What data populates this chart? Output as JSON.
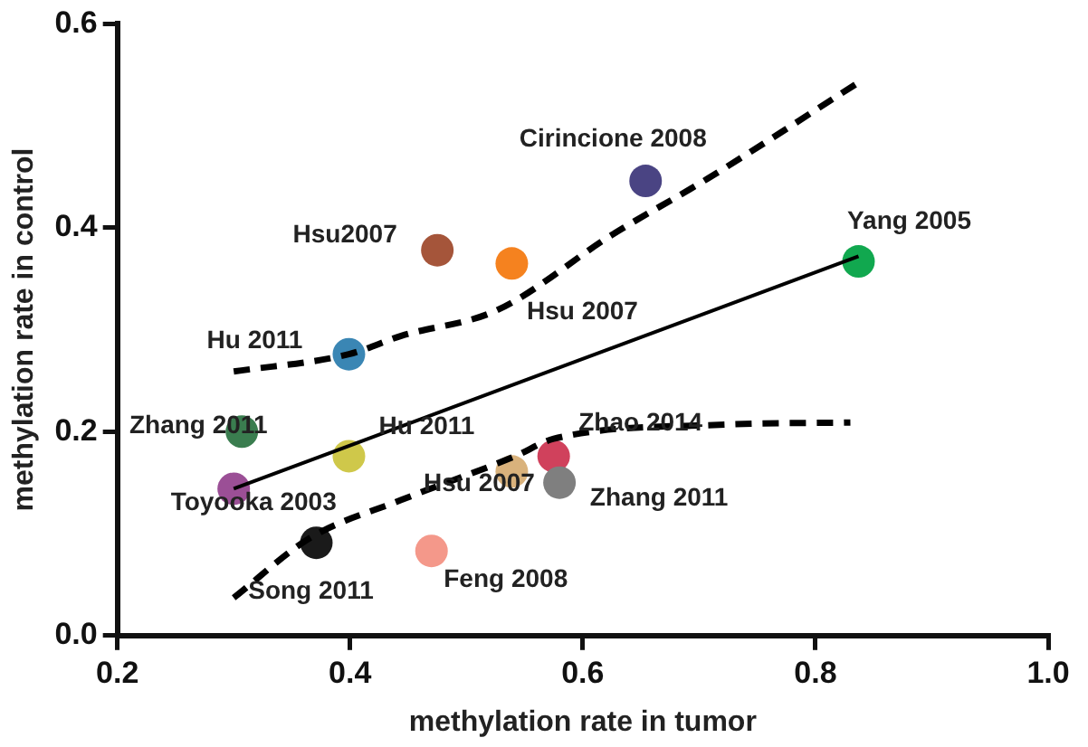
{
  "chart_data": {
    "type": "scatter",
    "xlabel": "methylation rate in tumor",
    "ylabel": "methylation rate in control",
    "xlim": [
      0.2,
      1.0
    ],
    "ylim": [
      0,
      0.6
    ],
    "xticks": [
      0.2,
      0.4,
      0.6,
      0.8,
      {
        "value": 1.0,
        "label": "1.0"
      }
    ],
    "yticks": [
      {
        "value": 0,
        "label": "0.0"
      },
      0.2,
      0.4,
      0.6
    ],
    "grid": false,
    "legend": false,
    "series": [
      {
        "marker": "circle",
        "x": [
          0.3,
          0.307,
          0.399,
          0.399,
          0.371,
          0.475,
          0.539,
          0.47,
          0.539,
          0.575,
          0.58,
          0.654,
          0.837
        ],
        "values": [
          0.144,
          0.2,
          0.276,
          0.176,
          0.091,
          0.378,
          0.365,
          0.083,
          0.161,
          0.176,
          0.15,
          0.446,
          0.367
        ],
        "colors": [
          "#9b4f96",
          "#3a7d4f",
          "#3a86b4",
          "#cfc84a",
          "#1a1a1a",
          "#a5553a",
          "#f5821f",
          "#f4988a",
          "#d9b27c",
          "#d0415c",
          "#7f7f7f",
          "#4a4483",
          "#11a84f"
        ]
      },
      {
        "type": "line",
        "color": "#000000",
        "line_style": "solid",
        "x": [
          0.3,
          0.837
        ],
        "values": [
          0.144,
          0.372
        ]
      },
      {
        "type": "line",
        "color": "#000000",
        "line_style": "dashed",
        "x": [
          0.3,
          0.399,
          0.444,
          0.526,
          0.625,
          0.707,
          0.839
        ],
        "values": [
          0.259,
          0.276,
          0.294,
          0.319,
          0.393,
          0.448,
          0.544
        ]
      },
      {
        "type": "line",
        "color": "#000000",
        "line_style": "dashed",
        "x": [
          0.3,
          0.366,
          0.444,
          0.542,
          0.575,
          0.723,
          0.83
        ],
        "values": [
          0.037,
          0.096,
          0.133,
          0.176,
          0.193,
          0.207,
          0.209
        ]
      }
    ],
    "annotations": [
      {
        "text": "Toyooka 2003",
        "x": 0.3,
        "y": 0.144
      },
      {
        "text": "Zhang 2011",
        "x": 0.307,
        "y": 0.2
      },
      {
        "text": "Hu 2011",
        "x": 0.399,
        "y": 0.276
      },
      {
        "text": "Hu 2011",
        "x": 0.399,
        "y": 0.176
      },
      {
        "text": "Song 2011",
        "x": 0.371,
        "y": 0.091
      },
      {
        "text": "Hsu2007",
        "x": 0.475,
        "y": 0.378
      },
      {
        "text": "Hsu 2007",
        "x": 0.539,
        "y": 0.365
      },
      {
        "text": "Feng 2008",
        "x": 0.47,
        "y": 0.083
      },
      {
        "text": "Hsu 2007",
        "x": 0.539,
        "y": 0.161
      },
      {
        "text": "Zhao 2014",
        "x": 0.575,
        "y": 0.176
      },
      {
        "text": "Zhang 2011",
        "x": 0.58,
        "y": 0.15
      },
      {
        "text": "Cirincione 2008",
        "x": 0.654,
        "y": 0.446
      },
      {
        "text": "Yang 2005",
        "x": 0.837,
        "y": 0.367
      }
    ]
  }
}
